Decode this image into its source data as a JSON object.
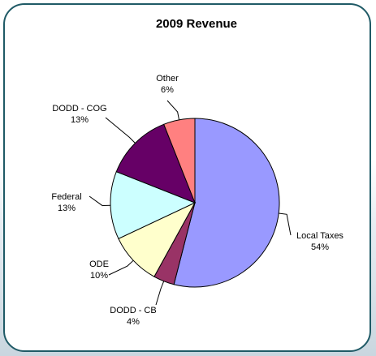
{
  "chart_data": {
    "type": "pie",
    "title": "2009 Revenue",
    "slices": [
      {
        "label": "Local Taxes",
        "value": 54,
        "value_label": "54%",
        "color": "#9999ff"
      },
      {
        "label": "DODD - CB",
        "value": 4,
        "value_label": "4%",
        "color": "#993366"
      },
      {
        "label": "ODE",
        "value": 10,
        "value_label": "10%",
        "color": "#ffffcc"
      },
      {
        "label": "Federal",
        "value": 13,
        "value_label": "13%",
        "color": "#ccffff"
      },
      {
        "label": "DODD - COG",
        "value": 13,
        "value_label": "13%",
        "color": "#660066"
      },
      {
        "label": "Other",
        "value": 6,
        "value_label": "6%",
        "color": "#ff8080"
      }
    ]
  }
}
